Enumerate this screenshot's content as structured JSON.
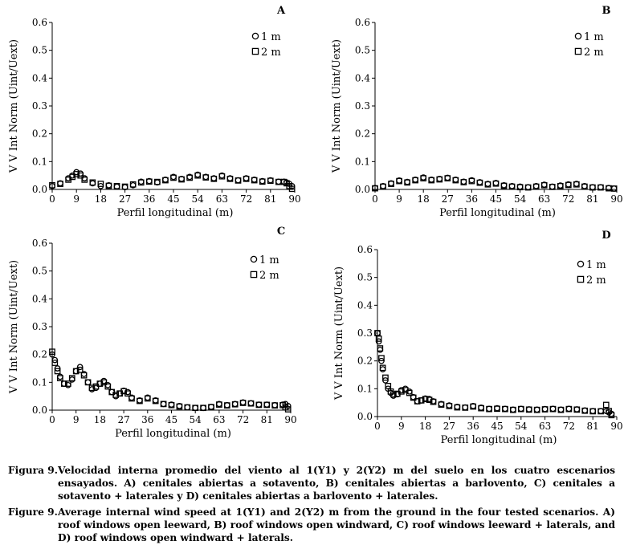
{
  "chart_data": [
    {
      "type": "scatter",
      "panel": "A",
      "ylabel": "V V Int Norm (Uint/Uext)",
      "xlabel": "Perfil longitudinal (m)",
      "xticks": [
        0,
        9,
        18,
        27,
        36,
        45,
        54,
        63,
        72,
        81,
        90
      ],
      "yticks": [
        "0.0",
        "0.1",
        "0.2",
        "0.3",
        "0.4",
        "0.5",
        "0.6"
      ],
      "xlim": [
        0,
        90
      ],
      "ylim": [
        0,
        0.6
      ],
      "legend": "top-right",
      "series": [
        {
          "name": "1 m",
          "marker": "circle",
          "x": [
            0,
            3,
            6,
            7.5,
            9,
            10.5,
            12,
            15,
            18,
            21,
            24,
            27,
            30,
            33,
            36,
            39,
            42,
            45,
            48,
            51,
            54,
            57,
            60,
            63,
            66,
            69,
            72,
            75,
            78,
            81,
            84,
            86,
            87,
            88,
            89
          ],
          "y": [
            0.012,
            0.022,
            0.04,
            0.05,
            0.062,
            0.057,
            0.04,
            0.022,
            0.012,
            0.015,
            0.01,
            0.008,
            0.015,
            0.028,
            0.03,
            0.025,
            0.035,
            0.045,
            0.038,
            0.045,
            0.053,
            0.045,
            0.04,
            0.05,
            0.04,
            0.033,
            0.04,
            0.035,
            0.03,
            0.033,
            0.028,
            0.028,
            0.025,
            0.02,
            0.012
          ]
        },
        {
          "name": "2 m",
          "marker": "square",
          "x": [
            0,
            3,
            6,
            7.5,
            9,
            10.5,
            12,
            15,
            18,
            21,
            24,
            27,
            30,
            33,
            36,
            39,
            42,
            45,
            48,
            51,
            54,
            57,
            60,
            63,
            66,
            69,
            72,
            75,
            78,
            81,
            84,
            86,
            87,
            88,
            89
          ],
          "y": [
            0.015,
            0.02,
            0.035,
            0.045,
            0.055,
            0.05,
            0.035,
            0.025,
            0.02,
            0.013,
            0.012,
            0.01,
            0.018,
            0.025,
            0.028,
            0.027,
            0.033,
            0.042,
            0.036,
            0.042,
            0.05,
            0.043,
            0.038,
            0.047,
            0.038,
            0.032,
            0.038,
            0.033,
            0.028,
            0.031,
            0.027,
            0.027,
            0.022,
            0.012,
            0.002
          ]
        }
      ]
    },
    {
      "type": "scatter",
      "panel": "B",
      "ylabel": "V V Int Norm (Uint/Uext)",
      "xlabel": "Perfil longitudinal (m)",
      "xticks": [
        0,
        9,
        18,
        27,
        36,
        45,
        54,
        63,
        72,
        81,
        90
      ],
      "yticks": [
        "0.0",
        "0.1",
        "0.2",
        "0.3",
        "0.4",
        "0.5",
        "0.6"
      ],
      "xlim": [
        0,
        90
      ],
      "ylim": [
        0,
        0.6
      ],
      "legend": "top-right",
      "series": [
        {
          "name": "1 m",
          "marker": "circle",
          "x": [
            0,
            3,
            6,
            9,
            12,
            15,
            18,
            21,
            24,
            27,
            30,
            33,
            36,
            39,
            42,
            45,
            48,
            51,
            54,
            57,
            60,
            63,
            66,
            69,
            72,
            75,
            78,
            81,
            84,
            87,
            89
          ],
          "y": [
            0.005,
            0.012,
            0.022,
            0.032,
            0.027,
            0.035,
            0.043,
            0.035,
            0.038,
            0.042,
            0.035,
            0.028,
            0.033,
            0.026,
            0.02,
            0.023,
            0.015,
            0.012,
            0.01,
            0.008,
            0.012,
            0.017,
            0.01,
            0.014,
            0.018,
            0.02,
            0.012,
            0.008,
            0.008,
            0.005,
            0.003
          ]
        },
        {
          "name": "2 m",
          "marker": "square",
          "x": [
            0,
            3,
            6,
            9,
            12,
            15,
            18,
            21,
            24,
            27,
            30,
            33,
            36,
            39,
            42,
            45,
            48,
            51,
            54,
            57,
            60,
            63,
            66,
            69,
            72,
            75,
            78,
            81,
            84,
            87,
            89
          ],
          "y": [
            0.004,
            0.01,
            0.02,
            0.03,
            0.025,
            0.033,
            0.04,
            0.033,
            0.036,
            0.04,
            0.033,
            0.026,
            0.03,
            0.024,
            0.018,
            0.021,
            0.013,
            0.01,
            0.008,
            0.007,
            0.01,
            0.015,
            0.009,
            0.012,
            0.016,
            0.018,
            0.01,
            0.007,
            0.007,
            0.004,
            0.003
          ]
        }
      ]
    },
    {
      "type": "scatter",
      "panel": "C",
      "ylabel": "V V Int Norm (Uint/Uext)",
      "xlabel": "Perfil longitudinal (m)",
      "xticks": [
        0,
        9,
        18,
        27,
        36,
        45,
        54,
        63,
        72,
        81,
        90
      ],
      "yticks": [
        "0.0",
        "0.1",
        "0.2",
        "0.3",
        "0.4",
        "0.5",
        "0.6"
      ],
      "xlim": [
        0,
        90
      ],
      "ylim": [
        0,
        0.6
      ],
      "legend": "top-right",
      "series": [
        {
          "name": "1 m",
          "marker": "circle",
          "x": [
            0,
            1,
            2,
            3,
            4.5,
            6,
            7.5,
            9,
            10.5,
            12,
            13.5,
            15,
            16.5,
            18,
            19.5,
            21,
            22.5,
            24,
            25.5,
            27,
            28.5,
            30,
            33,
            36,
            39,
            42,
            45,
            48,
            51,
            54,
            57,
            60,
            63,
            66,
            69,
            72,
            75,
            78,
            81,
            84,
            87,
            88,
            89
          ],
          "y": [
            0.2,
            0.18,
            0.15,
            0.12,
            0.095,
            0.09,
            0.11,
            0.14,
            0.155,
            0.13,
            0.1,
            0.075,
            0.08,
            0.095,
            0.105,
            0.09,
            0.065,
            0.05,
            0.06,
            0.07,
            0.065,
            0.045,
            0.035,
            0.045,
            0.035,
            0.022,
            0.02,
            0.015,
            0.01,
            0.008,
            0.008,
            0.012,
            0.022,
            0.018,
            0.022,
            0.028,
            0.025,
            0.02,
            0.02,
            0.018,
            0.02,
            0.022,
            0.015
          ]
        },
        {
          "name": "2 m",
          "marker": "square",
          "x": [
            0,
            1,
            2,
            3,
            4.5,
            6,
            7.5,
            9,
            10.5,
            12,
            13.5,
            15,
            16.5,
            18,
            19.5,
            21,
            22.5,
            24,
            25.5,
            27,
            28.5,
            30,
            33,
            36,
            39,
            42,
            45,
            48,
            51,
            54,
            57,
            60,
            63,
            66,
            69,
            72,
            75,
            78,
            81,
            84,
            87,
            88,
            89
          ],
          "y": [
            0.21,
            0.17,
            0.14,
            0.115,
            0.095,
            0.095,
            0.115,
            0.14,
            0.145,
            0.125,
            0.1,
            0.08,
            0.085,
            0.095,
            0.1,
            0.085,
            0.065,
            0.055,
            0.06,
            0.068,
            0.06,
            0.042,
            0.033,
            0.042,
            0.033,
            0.022,
            0.018,
            0.013,
            0.01,
            0.008,
            0.008,
            0.011,
            0.02,
            0.017,
            0.021,
            0.026,
            0.024,
            0.019,
            0.019,
            0.017,
            0.018,
            0.01,
            0.003
          ]
        }
      ]
    },
    {
      "type": "scatter",
      "panel": "D",
      "ylabel": "V V Int Norm (Uint/Uext)",
      "xlabel": "Perfil longitudinal (m)",
      "xticks": [
        0,
        9,
        18,
        27,
        36,
        45,
        54,
        63,
        72,
        81,
        90
      ],
      "yticks": [
        "0.0",
        "0.1",
        "0.2",
        "0.3",
        "0.4",
        "0.5",
        "0.6"
      ],
      "xlim": [
        0,
        90
      ],
      "ylim": [
        0,
        0.6
      ],
      "legend": "top-right",
      "series": [
        {
          "name": "1 m",
          "marker": "circle",
          "x": [
            0,
            0.5,
            1,
            1.5,
            2,
            3,
            4,
            5,
            6,
            7.5,
            9,
            10.5,
            12,
            13.5,
            15,
            16.5,
            18,
            19.5,
            21,
            24,
            27,
            30,
            33,
            36,
            39,
            42,
            45,
            48,
            51,
            54,
            57,
            60,
            63,
            66,
            69,
            72,
            75,
            78,
            81,
            84,
            86,
            87,
            88
          ],
          "y": [
            0.3,
            0.27,
            0.24,
            0.2,
            0.17,
            0.13,
            0.1,
            0.085,
            0.075,
            0.08,
            0.095,
            0.1,
            0.09,
            0.07,
            0.055,
            0.058,
            0.065,
            0.063,
            0.055,
            0.045,
            0.04,
            0.035,
            0.033,
            0.038,
            0.032,
            0.028,
            0.03,
            0.028,
            0.025,
            0.028,
            0.026,
            0.025,
            0.027,
            0.028,
            0.025,
            0.028,
            0.026,
            0.022,
            0.02,
            0.02,
            0.02,
            0.015,
            0.01
          ]
        },
        {
          "name": "2 m",
          "marker": "square",
          "x": [
            0,
            0.5,
            1,
            1.5,
            2,
            3,
            4,
            5,
            6,
            7.5,
            9,
            10.5,
            12,
            13.5,
            15,
            16.5,
            18,
            19.5,
            21,
            24,
            27,
            30,
            33,
            36,
            39,
            42,
            45,
            48,
            51,
            54,
            57,
            60,
            63,
            66,
            69,
            72,
            75,
            78,
            81,
            84,
            86,
            87,
            88
          ],
          "y": [
            0.3,
            0.28,
            0.245,
            0.21,
            0.175,
            0.14,
            0.11,
            0.09,
            0.08,
            0.082,
            0.09,
            0.095,
            0.085,
            0.068,
            0.055,
            0.058,
            0.063,
            0.06,
            0.053,
            0.043,
            0.038,
            0.033,
            0.032,
            0.036,
            0.03,
            0.027,
            0.028,
            0.027,
            0.024,
            0.027,
            0.025,
            0.024,
            0.026,
            0.027,
            0.024,
            0.027,
            0.025,
            0.021,
            0.019,
            0.019,
            0.042,
            0.02,
            0.005
          ]
        }
      ]
    }
  ],
  "captions": {
    "es_label": "Figura 9.",
    "es_text": "Velocidad interna promedio del viento al 1(Y1) y 2(Y2) m del suelo en los cuatro escenarios ensayados. A) cenitales abiertas a sotavento, B) cenitales abiertas a barlovento, C) cenitales a sotavento + laterales y D) cenitales abiertas a barlovento + laterales.",
    "en_label": "Figure 9.",
    "en_text": "Average internal wind speed at 1(Y1) and 2(Y2) m from the ground in the four tested scenarios. A) roof windows open leeward, B) roof windows open windward, C) roof windows leeward + laterals, and D) roof windows open windward + laterals."
  }
}
